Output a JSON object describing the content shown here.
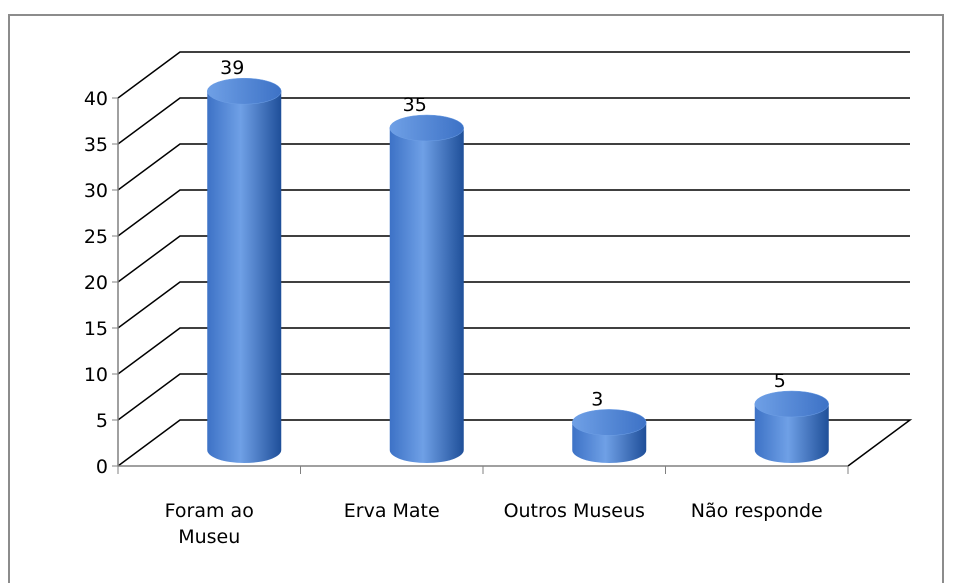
{
  "chart_data": {
    "type": "bar",
    "title": "",
    "xlabel": "",
    "ylabel": "",
    "categories": [
      "Foram ao Museu",
      "Erva Mate",
      "Outros Museus",
      "Não responde"
    ],
    "category_lines": [
      [
        "Foram ao",
        "Museu"
      ],
      [
        "Erva Mate"
      ],
      [
        "Outros Museus"
      ],
      [
        "Não responde"
      ]
    ],
    "values": [
      39,
      35,
      3,
      5
    ],
    "data_labels": [
      "39",
      "35",
      "3",
      "5"
    ],
    "ylim": [
      0,
      40
    ],
    "yticks": [
      "0",
      "5",
      "10",
      "15",
      "20",
      "25",
      "30",
      "35",
      "40"
    ],
    "grid": true,
    "legend": "none",
    "style": "3d-cylinder",
    "colors": {
      "bar_light": "#6fa0e6",
      "bar_mid": "#3d72c6",
      "bar_dark": "#1f4f99",
      "gridline": "#000000",
      "axis": "#808080"
    }
  }
}
